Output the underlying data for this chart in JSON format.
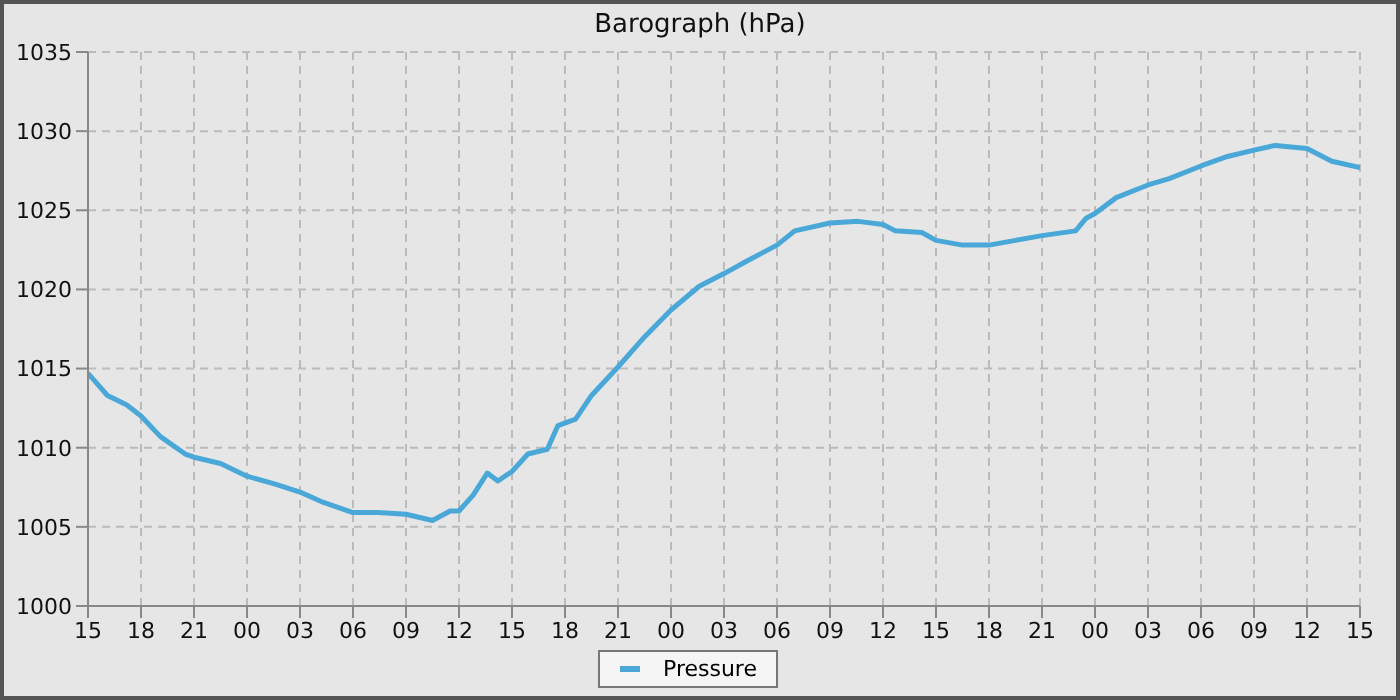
{
  "chart_data": {
    "type": "line",
    "title": "Barograph (hPa)",
    "x": [
      15,
      16.1,
      17.2,
      18,
      19.1,
      20.5,
      21,
      22.5,
      24,
      25.6,
      27,
      28.2,
      30,
      31.4,
      33,
      34.5,
      35.5,
      36,
      36.8,
      37.6,
      38.2,
      39,
      39.9,
      41,
      41.6,
      42.6,
      43.5,
      45,
      46.5,
      48,
      49.6,
      51,
      52.3,
      54,
      55,
      57,
      58.6,
      60,
      60.7,
      62.2,
      63,
      64.5,
      66,
      67.5,
      69,
      70.9,
      71.5,
      72,
      73.2,
      75,
      76.2,
      78,
      79.5,
      81,
      82.2,
      84,
      85.4,
      87
    ],
    "series": [
      {
        "name": "Pressure",
        "color": "#4aa8d8",
        "values": [
          1014.7,
          1013.3,
          1012.7,
          1012.0,
          1010.7,
          1009.6,
          1009.4,
          1009.0,
          1008.2,
          1007.7,
          1007.2,
          1006.6,
          1005.9,
          1005.9,
          1005.8,
          1005.4,
          1006.0,
          1006.0,
          1007.0,
          1008.4,
          1007.9,
          1008.5,
          1009.6,
          1009.9,
          1011.4,
          1011.8,
          1013.3,
          1015.1,
          1017.0,
          1018.7,
          1020.2,
          1021.0,
          1021.8,
          1022.8,
          1023.7,
          1024.2,
          1024.3,
          1024.1,
          1023.7,
          1023.6,
          1023.1,
          1022.8,
          1022.8,
          1023.1,
          1023.4,
          1023.7,
          1024.5,
          1024.8,
          1025.8,
          1026.6,
          1027.0,
          1027.8,
          1028.4,
          1028.8,
          1029.1,
          1028.9,
          1028.1,
          1027.7
        ]
      }
    ],
    "xlim": [
      15,
      87
    ],
    "xticks": [
      15,
      18,
      21,
      {
        "value": 24,
        "label": "00"
      },
      {
        "value": 27,
        "label": "03"
      },
      {
        "value": 30,
        "label": "06"
      },
      {
        "value": 33,
        "label": "09"
      },
      {
        "value": 36,
        "label": "12"
      },
      {
        "value": 39,
        "label": "15"
      },
      {
        "value": 42,
        "label": "18"
      },
      {
        "value": 45,
        "label": "21"
      },
      {
        "value": 48,
        "label": "00"
      },
      {
        "value": 51,
        "label": "03"
      },
      {
        "value": 54,
        "label": "06"
      },
      {
        "value": 57,
        "label": "09"
      },
      {
        "value": 60,
        "label": "12"
      },
      {
        "value": 63,
        "label": "15"
      },
      {
        "value": 66,
        "label": "18"
      },
      {
        "value": 69,
        "label": "21"
      },
      {
        "value": 72,
        "label": "00"
      },
      {
        "value": 75,
        "label": "03"
      },
      {
        "value": 78,
        "label": "06"
      },
      {
        "value": 81,
        "label": "09"
      },
      {
        "value": 84,
        "label": "12"
      },
      {
        "value": 87,
        "label": "15"
      }
    ],
    "ylim": [
      1000,
      1035
    ],
    "yticks": [
      1000,
      1005,
      1010,
      1015,
      1020,
      1025,
      1030,
      1035
    ],
    "grid": true,
    "legend": "bottom",
    "marker": "none",
    "line_style": "solid"
  }
}
